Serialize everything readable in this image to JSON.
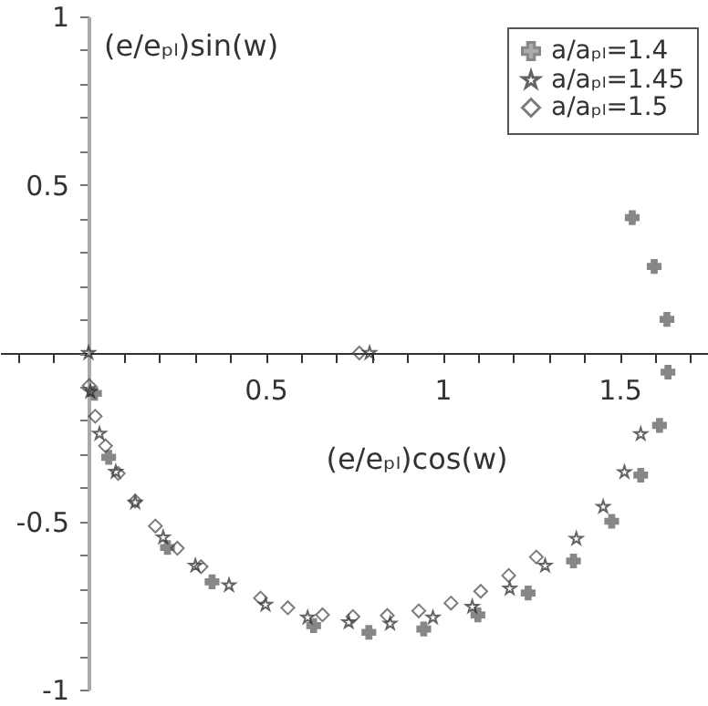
{
  "chart_data": {
    "type": "scatter",
    "xlabel": "(e/eₚₗ)cos(w)",
    "ylabel": "(e/eₚₗ)sin(w)",
    "xlim": [
      -0.25,
      1.75
    ],
    "ylim": [
      -1,
      1
    ],
    "xticks": [
      {
        "value": -0.2,
        "label": null
      },
      {
        "value": -0.1,
        "label": null
      },
      {
        "value": 0,
        "label": null
      },
      {
        "value": 0.1,
        "label": null
      },
      {
        "value": 0.2,
        "label": null
      },
      {
        "value": 0.3,
        "label": null
      },
      {
        "value": 0.4,
        "label": null
      },
      0.5,
      {
        "value": 0.6,
        "label": null
      },
      {
        "value": 0.7,
        "label": null
      },
      {
        "value": 0.8,
        "label": null
      },
      {
        "value": 0.9,
        "label": null
      },
      1,
      {
        "value": 1.1,
        "label": null
      },
      {
        "value": 1.2,
        "label": null
      },
      {
        "value": 1.3,
        "label": null
      },
      {
        "value": 1.4,
        "label": null
      },
      1.5,
      {
        "value": 1.6,
        "label": null
      },
      {
        "value": 1.7,
        "label": null
      }
    ],
    "yticks": [
      -1,
      {
        "value": -0.9,
        "label": null
      },
      {
        "value": -0.8,
        "label": null
      },
      {
        "value": -0.7,
        "label": null
      },
      {
        "value": -0.6,
        "label": null
      },
      -0.5,
      {
        "value": -0.4,
        "label": null
      },
      {
        "value": -0.3,
        "label": null
      },
      {
        "value": -0.2,
        "label": null
      },
      {
        "value": -0.1,
        "label": null
      },
      {
        "value": 0,
        "label": null
      },
      {
        "value": 0.1,
        "label": null
      },
      {
        "value": 0.2,
        "label": null
      },
      {
        "value": 0.3,
        "label": null
      },
      {
        "value": 0.4,
        "label": null
      },
      0.5,
      {
        "value": 0.6,
        "label": null
      },
      {
        "value": 0.7,
        "label": null
      },
      {
        "value": 0.8,
        "label": null
      },
      {
        "value": 0.9,
        "label": null
      },
      1
    ],
    "legend": "top right",
    "series": [
      {
        "name": "a/aₚₗ=1.4",
        "color": "#555555",
        "marker": "cross",
        "x": [
          0.017,
          0.057,
          0.223,
          0.349,
          0.636,
          0.792,
          0.947,
          1.1,
          1.242,
          1.37,
          1.478,
          1.56,
          1.613,
          1.637,
          1.634,
          1.598,
          1.536
        ],
        "values": [
          -0.12,
          -0.31,
          -0.578,
          -0.68,
          -0.81,
          -0.83,
          -0.82,
          -0.778,
          -0.713,
          -0.618,
          -0.5,
          -0.363,
          -0.215,
          -0.057,
          0.1,
          0.257,
          0.402
        ]
      },
      {
        "name": "a/aₚₗ=1.45",
        "color": "#222222",
        "marker": "star",
        "x": [
          0,
          0.005,
          0.031,
          0.077,
          0.132,
          0.211,
          0.302,
          0.397,
          0.5,
          0.619,
          0.735,
          0.852,
          0.973,
          1.084,
          1.19,
          1.29,
          1.378,
          1.454,
          1.514,
          1.56,
          0.794
        ],
        "values": [
          0,
          -0.115,
          -0.24,
          -0.353,
          -0.444,
          -0.548,
          -0.632,
          -0.69,
          -0.748,
          -0.786,
          -0.8,
          -0.804,
          -0.786,
          -0.754,
          -0.7,
          -0.632,
          -0.552,
          -0.457,
          -0.354,
          -0.241,
          0
        ]
      },
      {
        "name": "a/aₚₗ=1.5",
        "color": "#444444",
        "marker": "diamond",
        "x": [
          0.002,
          0.019,
          0.048,
          0.084,
          0.132,
          0.189,
          0.251,
          0.318,
          0.486,
          0.563,
          0.661,
          0.747,
          0.844,
          0.933,
          1.024,
          1.108,
          1.187,
          1.265,
          0.765
        ],
        "values": [
          -0.097,
          -0.188,
          -0.276,
          -0.358,
          -0.44,
          -0.514,
          -0.58,
          -0.635,
          -0.728,
          -0.757,
          -0.778,
          -0.783,
          -0.78,
          -0.766,
          -0.743,
          -0.708,
          -0.661,
          -0.606,
          0
        ]
      }
    ]
  }
}
